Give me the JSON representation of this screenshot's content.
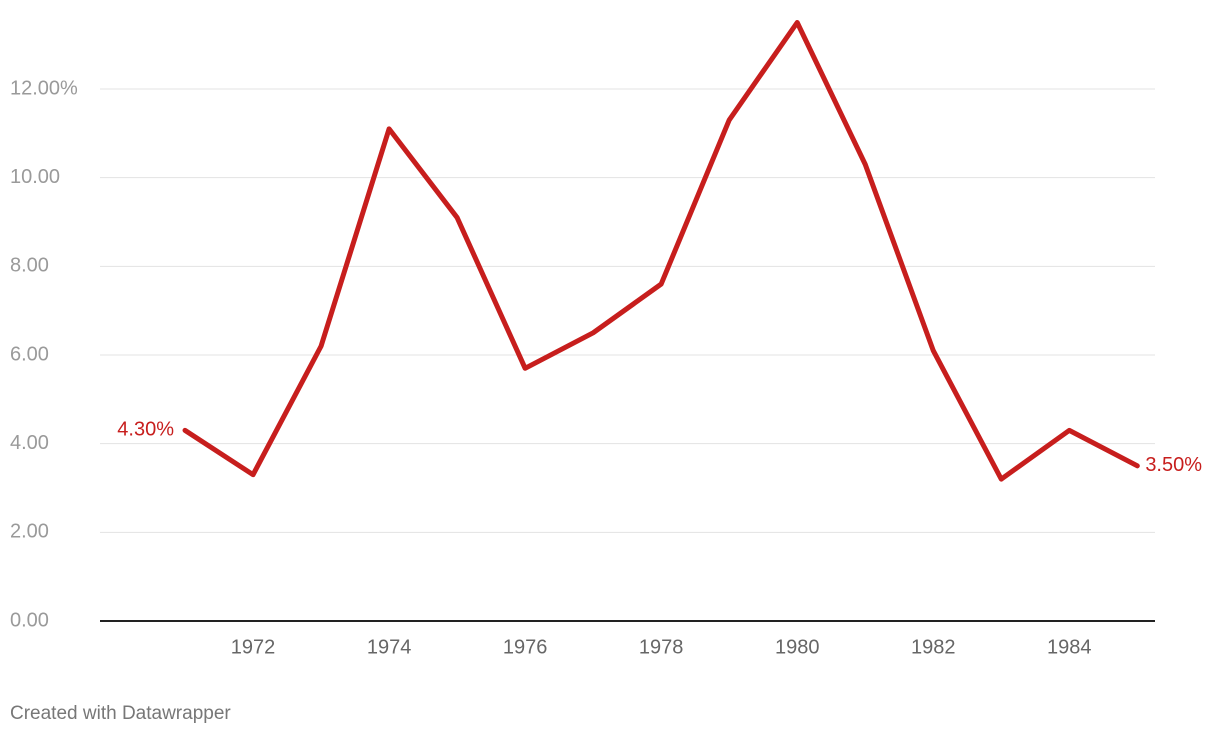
{
  "chart_data": {
    "type": "line",
    "x": [
      1971,
      1972,
      1973,
      1974,
      1975,
      1976,
      1977,
      1978,
      1979,
      1980,
      1981,
      1982,
      1983,
      1984,
      1985
    ],
    "series": [
      {
        "name": null,
        "color": "#c71e1d",
        "values": [
          4.3,
          3.3,
          6.2,
          11.1,
          9.1,
          5.7,
          6.5,
          7.6,
          11.3,
          13.5,
          10.3,
          6.1,
          3.2,
          4.3,
          3.5
        ],
        "value_labels": [
          "4.30%",
          null,
          null,
          null,
          null,
          null,
          null,
          null,
          null,
          null,
          null,
          null,
          null,
          null,
          "3.50%"
        ]
      }
    ],
    "xlim": [
      1969.75,
      1985.26
    ],
    "xticks": [
      1972,
      1974,
      1976,
      1978,
      1980,
      1982,
      1984
    ],
    "ylim": [
      0,
      12
    ],
    "yticks": [
      {
        "value": 0,
        "label": "0.00"
      },
      {
        "value": 2,
        "label": "2.00"
      },
      {
        "value": 4,
        "label": "4.00"
      },
      {
        "value": 6,
        "label": "6.00"
      },
      {
        "value": 8,
        "label": "8.00"
      },
      {
        "value": 10,
        "label": "10.00"
      },
      {
        "value": 12,
        "label": "12.00%"
      }
    ],
    "grid": true,
    "credit": "Created with Datawrapper"
  }
}
